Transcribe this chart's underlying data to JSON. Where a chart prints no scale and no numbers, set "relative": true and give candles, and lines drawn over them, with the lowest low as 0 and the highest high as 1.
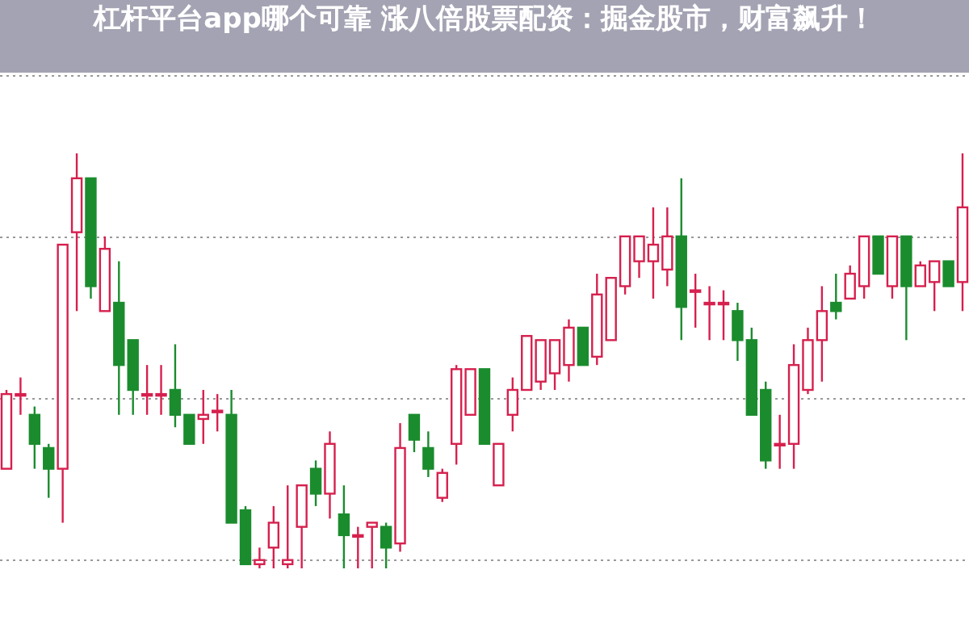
{
  "chart_data": {
    "type": "candlestick",
    "relative": true,
    "grid": true,
    "title": "杠杆平台app哪个可靠 涨八倍股票配资：掘金股市，财富飙升！",
    "categories": [
      null,
      null,
      null,
      null,
      null,
      null,
      null,
      null,
      null,
      null,
      null,
      null,
      null,
      null,
      null,
      null,
      null,
      null,
      null,
      null,
      null,
      null,
      null,
      null,
      null,
      null,
      null,
      null,
      null,
      null,
      null,
      null,
      null,
      null,
      null,
      null,
      null,
      null,
      null,
      null,
      null,
      null,
      null,
      null,
      null,
      null,
      null,
      null,
      null,
      null,
      null,
      null,
      null,
      null,
      null,
      null,
      null,
      null,
      null,
      null,
      null,
      null,
      null,
      null,
      null,
      null,
      null,
      null,
      null
    ],
    "ohlc": [
      [
        0.24,
        0.43,
        0.24,
        0.42
      ],
      [
        0.42,
        0.46,
        0.37,
        0.42
      ],
      [
        0.37,
        0.39,
        0.24,
        0.3
      ],
      [
        0.29,
        0.3,
        0.17,
        0.24
      ],
      [
        0.24,
        0.78,
        0.11,
        0.78
      ],
      [
        0.81,
        1.0,
        0.62,
        0.94
      ],
      [
        0.94,
        0.94,
        0.65,
        0.68
      ],
      [
        0.62,
        0.8,
        0.62,
        0.77
      ],
      [
        0.64,
        0.74,
        0.37,
        0.49
      ],
      [
        0.55,
        0.55,
        0.37,
        0.43
      ],
      [
        0.42,
        0.49,
        0.37,
        0.42
      ],
      [
        0.42,
        0.49,
        0.37,
        0.42
      ],
      [
        0.43,
        0.54,
        0.34,
        0.37
      ],
      [
        0.37,
        0.37,
        0.3,
        0.3
      ],
      [
        0.36,
        0.43,
        0.3,
        0.37
      ],
      [
        0.38,
        0.42,
        0.33,
        0.38
      ],
      [
        0.37,
        0.43,
        0.11,
        0.11
      ],
      [
        0.14,
        0.15,
        0.01,
        0.01
      ],
      [
        0.01,
        0.05,
        0.0,
        0.02
      ],
      [
        0.05,
        0.15,
        0.0,
        0.11
      ],
      [
        0.01,
        0.2,
        0.0,
        0.02
      ],
      [
        0.1,
        0.2,
        0.0,
        0.2
      ],
      [
        0.24,
        0.26,
        0.15,
        0.18
      ],
      [
        0.18,
        0.33,
        0.12,
        0.3
      ],
      [
        0.13,
        0.2,
        0.0,
        0.08
      ],
      [
        0.08,
        0.1,
        0.0,
        0.08
      ],
      [
        0.1,
        0.11,
        0.0,
        0.11
      ],
      [
        0.1,
        0.11,
        0.0,
        0.05
      ],
      [
        0.06,
        0.35,
        0.04,
        0.29
      ],
      [
        0.37,
        0.37,
        0.28,
        0.31
      ],
      [
        0.29,
        0.33,
        0.22,
        0.24
      ],
      [
        0.17,
        0.24,
        0.16,
        0.23
      ],
      [
        0.3,
        0.49,
        0.25,
        0.48
      ],
      [
        0.37,
        0.48,
        0.37,
        0.48
      ],
      [
        0.48,
        0.48,
        0.3,
        0.3
      ],
      [
        0.2,
        0.3,
        0.2,
        0.3
      ],
      [
        0.37,
        0.46,
        0.33,
        0.43
      ],
      [
        0.43,
        0.56,
        0.43,
        0.56
      ],
      [
        0.45,
        0.55,
        0.43,
        0.55
      ],
      [
        0.47,
        0.55,
        0.43,
        0.55
      ],
      [
        0.49,
        0.6,
        0.45,
        0.58
      ],
      [
        0.58,
        0.58,
        0.49,
        0.49
      ],
      [
        0.51,
        0.71,
        0.49,
        0.66
      ],
      [
        0.55,
        0.7,
        0.55,
        0.7
      ],
      [
        0.68,
        0.8,
        0.66,
        0.8
      ],
      [
        0.74,
        0.8,
        0.7,
        0.8
      ],
      [
        0.74,
        0.87,
        0.65,
        0.78
      ],
      [
        0.72,
        0.87,
        0.68,
        0.8
      ],
      [
        0.8,
        0.94,
        0.55,
        0.63
      ],
      [
        0.67,
        0.71,
        0.58,
        0.67
      ],
      [
        0.64,
        0.68,
        0.55,
        0.64
      ],
      [
        0.64,
        0.67,
        0.55,
        0.64
      ],
      [
        0.62,
        0.64,
        0.5,
        0.55
      ],
      [
        0.55,
        0.58,
        0.37,
        0.37
      ],
      [
        0.43,
        0.45,
        0.24,
        0.26
      ],
      [
        0.3,
        0.37,
        0.24,
        0.3
      ],
      [
        0.3,
        0.54,
        0.24,
        0.49
      ],
      [
        0.43,
        0.58,
        0.42,
        0.55
      ],
      [
        0.55,
        0.68,
        0.45,
        0.62
      ],
      [
        0.64,
        0.71,
        0.6,
        0.62
      ],
      [
        0.65,
        0.73,
        0.65,
        0.71
      ],
      [
        0.68,
        0.8,
        0.65,
        0.8
      ],
      [
        0.8,
        0.8,
        0.71,
        0.71
      ],
      [
        0.68,
        0.8,
        0.65,
        0.8
      ],
      [
        0.8,
        0.8,
        0.55,
        0.68
      ],
      [
        0.68,
        0.74,
        0.68,
        0.73
      ],
      [
        0.69,
        0.74,
        0.62,
        0.74
      ],
      [
        0.74,
        0.74,
        0.68,
        0.68
      ],
      [
        0.69,
        1.0,
        0.62,
        0.87
      ]
    ],
    "colors": [
      "#d6204e",
      "#d6204e",
      "#1b8c2e",
      "#1b8c2e",
      "#d6204e",
      "#d6204e",
      "#1b8c2e",
      "#d6204e",
      "#1b8c2e",
      "#1b8c2e",
      "#d6204e",
      "#d6204e",
      "#1b8c2e",
      "#1b8c2e",
      "#d6204e",
      "#d6204e",
      "#1b8c2e",
      "#1b8c2e",
      "#d6204e",
      "#d6204e",
      "#d6204e",
      "#d6204e",
      "#1b8c2e",
      "#d6204e",
      "#1b8c2e",
      "#d6204e",
      "#d6204e",
      "#1b8c2e",
      "#d6204e",
      "#1b8c2e",
      "#1b8c2e",
      "#d6204e",
      "#d6204e",
      "#d6204e",
      "#1b8c2e",
      "#d6204e",
      "#d6204e",
      "#d6204e",
      "#d6204e",
      "#d6204e",
      "#d6204e",
      "#1b8c2e",
      "#d6204e",
      "#d6204e",
      "#d6204e",
      "#d6204e",
      "#d6204e",
      "#d6204e",
      "#1b8c2e",
      "#d6204e",
      "#d6204e",
      "#d6204e",
      "#1b8c2e",
      "#1b8c2e",
      "#1b8c2e",
      "#d6204e",
      "#d6204e",
      "#d6204e",
      "#d6204e",
      "#1b8c2e",
      "#d6204e",
      "#d6204e",
      "#1b8c2e",
      "#d6204e",
      "#1b8c2e",
      "#d6204e",
      "#d6204e",
      "#1b8c2e",
      "#d6204e"
    ]
  }
}
